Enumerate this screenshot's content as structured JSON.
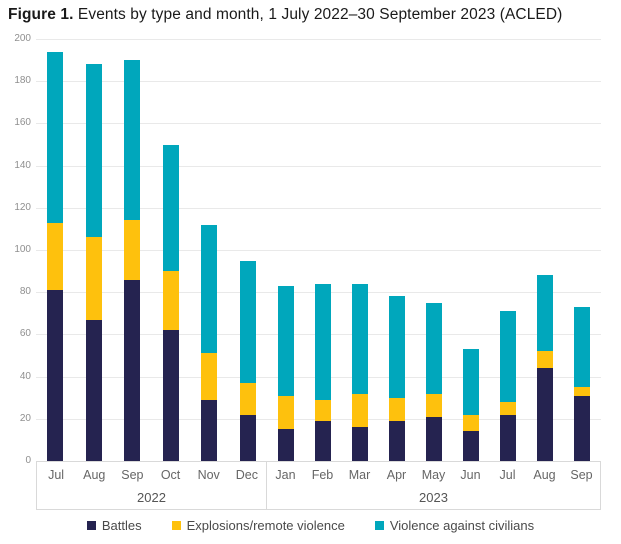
{
  "title": {
    "prefix": "Figure 1.",
    "text": " Events by type and month, 1 July 2022–30 September 2023 (ACLED)"
  },
  "chart_data": {
    "type": "bar",
    "stacked": true,
    "title": "Figure 1. Events by type and month, 1 July 2022–30 September 2023 (ACLED)",
    "xlabel": "",
    "ylabel": "",
    "ylim": [
      0,
      200
    ],
    "ytick_step": 20,
    "grid": true,
    "legend_position": "bottom",
    "groups": [
      {
        "year": "2022",
        "months": [
          "Jul",
          "Aug",
          "Sep",
          "Oct",
          "Nov",
          "Dec"
        ]
      },
      {
        "year": "2023",
        "months": [
          "Jan",
          "Feb",
          "Mar",
          "Apr",
          "May",
          "Jun",
          "Jul",
          "Aug",
          "Sep"
        ]
      }
    ],
    "series": [
      {
        "name": "Battles",
        "color": "#252350",
        "values": [
          81,
          67,
          86,
          62,
          29,
          22,
          15,
          19,
          16,
          19,
          21,
          14,
          22,
          44,
          31
        ]
      },
      {
        "name": "Explosions/remote violence",
        "color": "#fec10d",
        "values": [
          32,
          39,
          28,
          28,
          22,
          15,
          16,
          10,
          16,
          11,
          11,
          8,
          6,
          8,
          4
        ]
      },
      {
        "name": "Violence against civilians",
        "color": "#00a7bc",
        "values": [
          81,
          82,
          76,
          60,
          61,
          58,
          52,
          55,
          52,
          48,
          43,
          31,
          43,
          36,
          38
        ]
      }
    ],
    "totals": [
      194,
      188,
      190,
      150,
      112,
      95,
      83,
      84,
      84,
      78,
      75,
      53,
      71,
      88,
      73
    ]
  },
  "layout_colors": {
    "gridline": "#e9e9e9",
    "axis_box_border": "#d9d9d9",
    "ytick_text": "#8f8f8f",
    "month_text": "#666666",
    "year_text": "#555555",
    "legend_text": "#4a4a4a",
    "title_text": "#1a1a1a"
  }
}
